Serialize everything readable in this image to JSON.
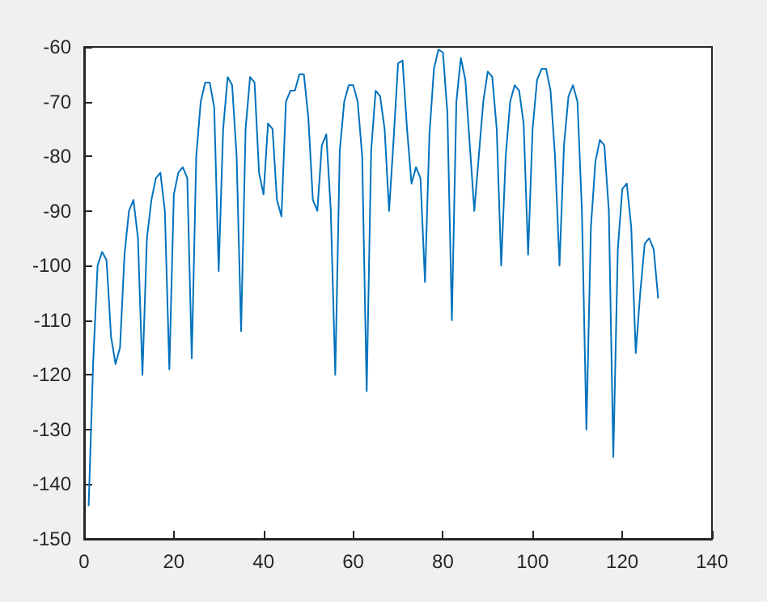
{
  "chart_data": {
    "type": "line",
    "x": [
      1,
      2,
      3,
      4,
      5,
      6,
      7,
      8,
      9,
      10,
      11,
      12,
      13,
      14,
      15,
      16,
      17,
      18,
      19,
      20,
      21,
      22,
      23,
      24,
      25,
      26,
      27,
      28,
      29,
      30,
      31,
      32,
      33,
      34,
      35,
      36,
      37,
      38,
      39,
      40,
      41,
      42,
      43,
      44,
      45,
      46,
      47,
      48,
      49,
      50,
      51,
      52,
      53,
      54,
      55,
      56,
      57,
      58,
      59,
      60,
      61,
      62,
      63,
      64,
      65,
      66,
      67,
      68,
      69,
      70,
      71,
      72,
      73,
      74,
      75,
      76,
      77,
      78,
      79,
      80,
      81,
      82,
      83,
      84,
      85,
      86,
      87,
      88,
      89,
      90,
      91,
      92,
      93,
      94,
      95,
      96,
      97,
      98,
      99,
      100,
      101,
      102,
      103,
      104,
      105,
      106,
      107,
      108,
      109,
      110,
      111,
      112,
      113,
      114,
      115,
      116,
      117,
      118,
      119,
      120,
      121,
      122,
      123,
      124,
      125,
      126,
      127,
      128
    ],
    "series": [
      {
        "color": "#0072bd",
        "values": [
          -144,
          -118,
          -100,
          -97.5,
          -99,
          -113,
          -118,
          -115,
          -98,
          -90,
          -88,
          -95,
          -120,
          -95,
          -88,
          -84,
          -83,
          -90,
          -119,
          -87,
          -83,
          -82,
          -84,
          -117,
          -80,
          -70,
          -66.5,
          -66.5,
          -71,
          -101,
          -75,
          -65.5,
          -67,
          -80,
          -112,
          -75,
          -65.5,
          -66.5,
          -83,
          -87,
          -74,
          -75,
          -88,
          -91,
          -70,
          -68,
          -68,
          -65,
          -65,
          -73,
          -88,
          -90,
          -78,
          -76,
          -90,
          -120,
          -79,
          -70,
          -67,
          -67,
          -70,
          -80,
          -123,
          -79,
          -68,
          -69,
          -75,
          -90,
          -77,
          -63,
          -62.5,
          -75,
          -85,
          -82,
          -84,
          -103,
          -76,
          -64,
          -60.5,
          -61,
          -72,
          -110,
          -70,
          -62,
          -66,
          -78,
          -90,
          -80,
          -70,
          -64.5,
          -65.5,
          -75,
          -100,
          -80,
          -70,
          -67,
          -68,
          -74,
          -98,
          -75,
          -66,
          -64,
          -64,
          -68,
          -80,
          -100,
          -78,
          -69,
          -67,
          -70,
          -90,
          -130,
          -93,
          -81,
          -77,
          -78,
          -90,
          -135,
          -97,
          -86,
          -85,
          -93,
          -116,
          -105,
          -96,
          -95,
          -97,
          -106
        ]
      }
    ],
    "xlim": [
      0,
      140
    ],
    "xticks": [
      0,
      20,
      40,
      60,
      80,
      100,
      120,
      140
    ],
    "ylim": [
      -150,
      -60
    ],
    "yticks": [
      -150,
      -140,
      -130,
      -120,
      -110,
      -100,
      -90,
      -80,
      -70,
      -60
    ],
    "grid": false,
    "marker": "none",
    "line_style": "solid"
  }
}
